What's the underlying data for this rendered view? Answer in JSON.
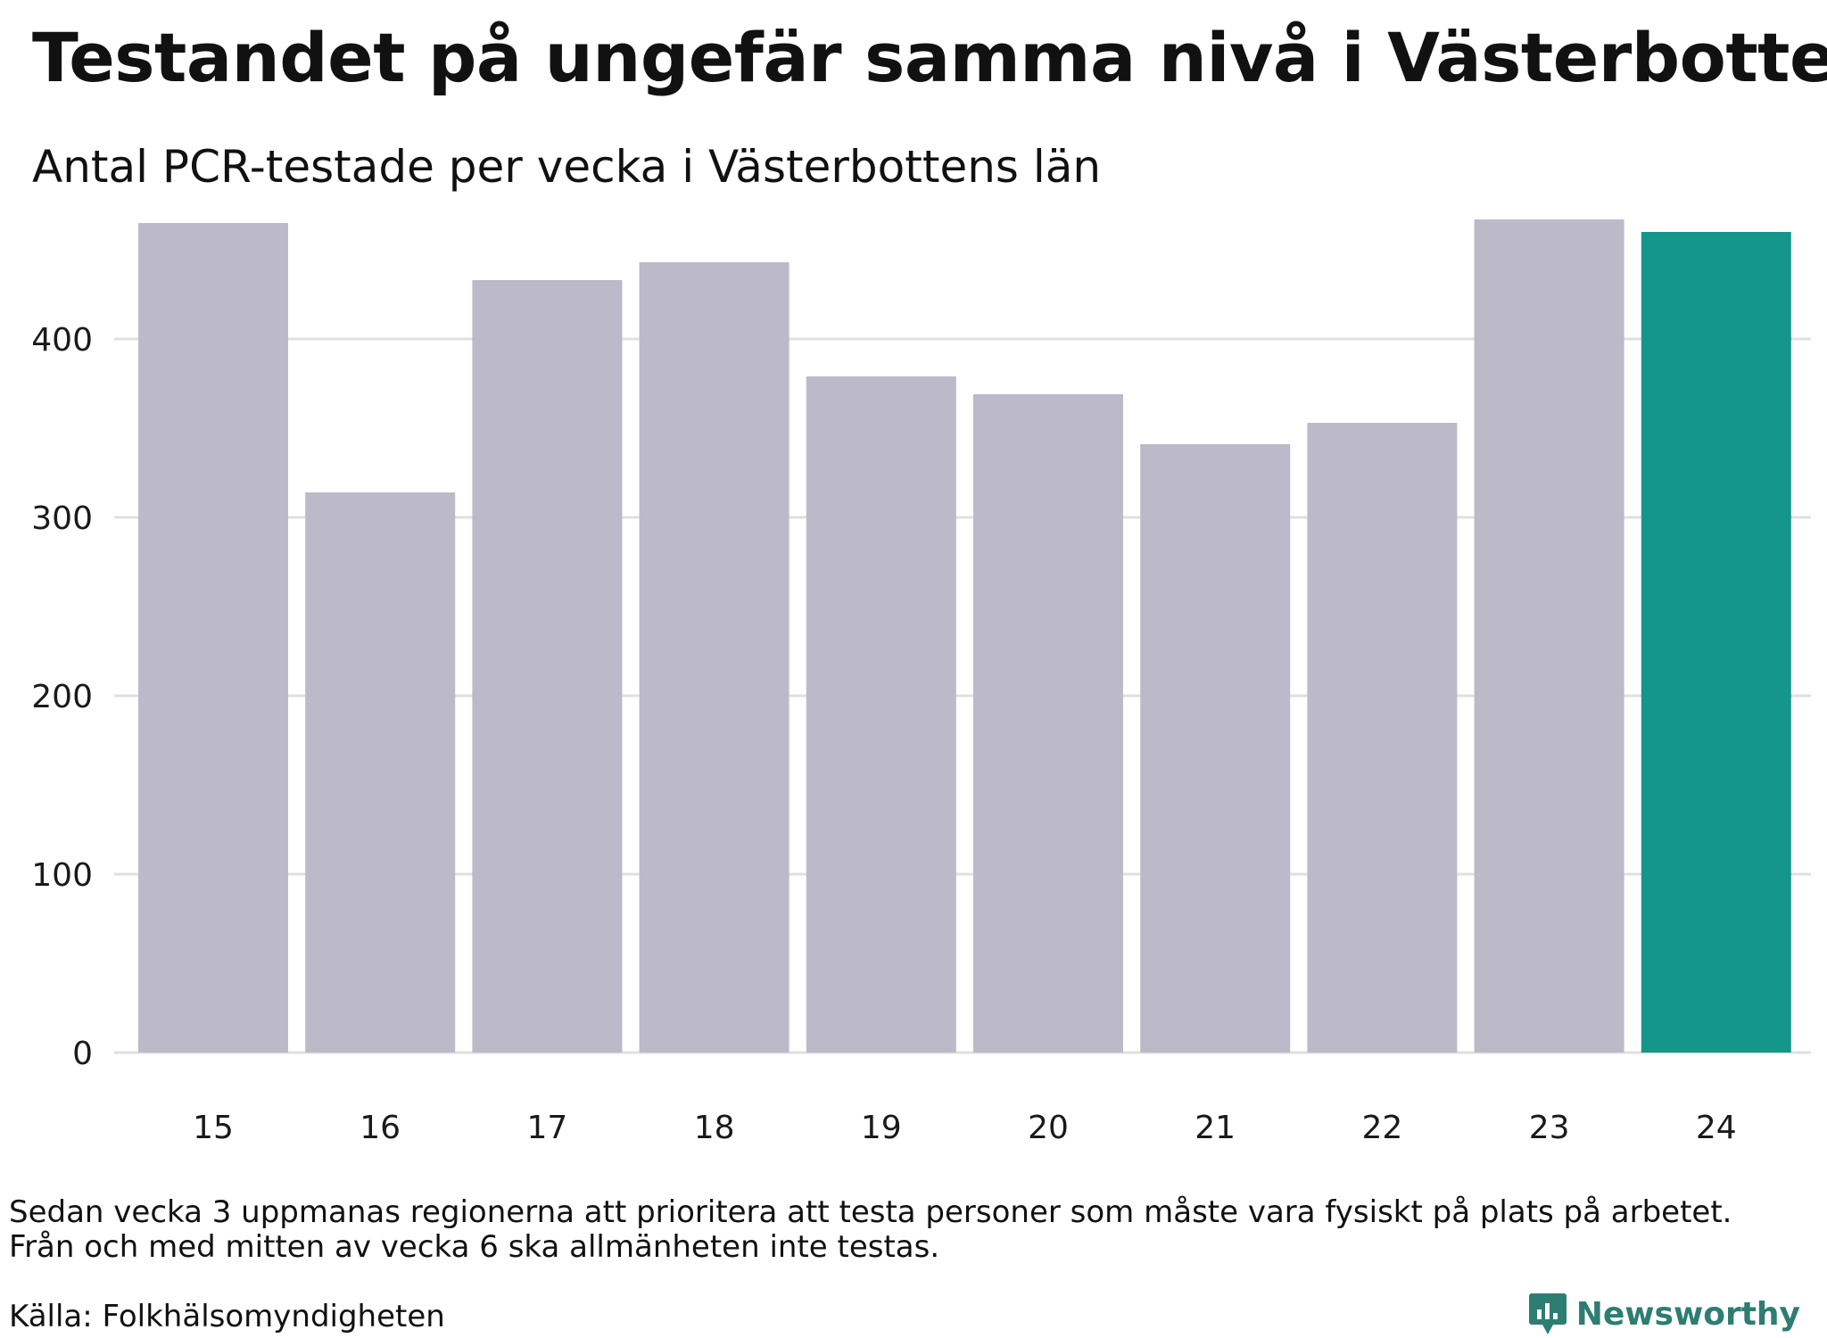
{
  "header": {
    "title": "Testandet på ungefär samma nivå i Västerbotten",
    "subtitle": "Antal PCR-testade per vecka i Västerbottens län"
  },
  "footer": {
    "note_line1": "Sedan vecka 3 uppmanas regionerna att prioritera att testa personer som måste vara fysiskt på plats på arbetet.",
    "note_line2": "Från och med mitten av vecka 6 ska allmänheten inte testas.",
    "source": "Källa: Folkhälsomyndigheten",
    "logo_text": "Newsworthy"
  },
  "colors": {
    "bar": "#bcbac8",
    "highlight": "#15968a",
    "grid": "#e0e0e0",
    "axis_text": "#1a1a1a",
    "brand": "#2d7d72"
  },
  "chart_data": {
    "type": "bar",
    "title": "Testandet på ungefär samma nivå i Västerbotten",
    "subtitle": "Antal PCR-testade per vecka i Västerbottens län",
    "xlabel": "",
    "ylabel": "",
    "categories": [
      "15",
      "16",
      "17",
      "18",
      "19",
      "20",
      "21",
      "22",
      "23",
      "24"
    ],
    "values": [
      465,
      314,
      433,
      443,
      379,
      369,
      341,
      353,
      467,
      460
    ],
    "highlight_index": 9,
    "ylim": [
      0,
      500
    ],
    "yticks": [
      0,
      100,
      200,
      300,
      400
    ],
    "grid": true,
    "legend": "none"
  }
}
